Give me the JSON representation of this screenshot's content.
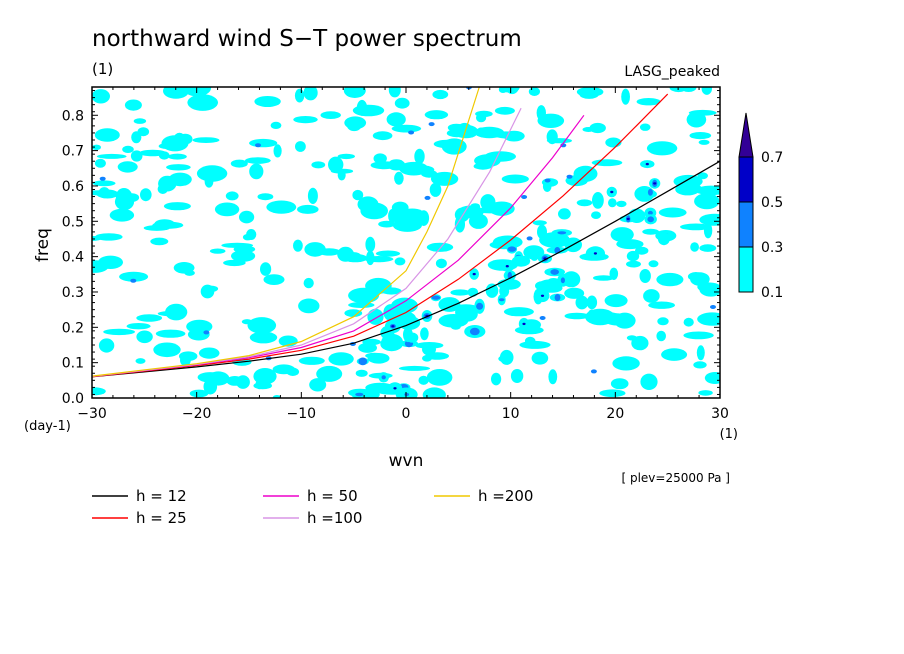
{
  "chart_data": {
    "type": "contour",
    "title": "northward wind S−T power spectrum",
    "subtitle_left": "(1)",
    "subtitle_right": "LASG_peaked",
    "xlabel": "wvn",
    "ylabel": "freq",
    "x_unit": "(1)",
    "y_unit": "(day-1)",
    "xlim": [
      -30,
      30
    ],
    "ylim": [
      0.0,
      0.88
    ],
    "x_ticks": [
      -30,
      -20,
      -10,
      0,
      10,
      20,
      30
    ],
    "x_tick_labels": [
      "−30",
      "−20",
      "−10",
      "0",
      "10",
      "20",
      "30"
    ],
    "y_ticks": [
      0.0,
      0.1,
      0.2,
      0.3,
      0.4,
      0.5,
      0.6,
      0.7,
      0.8
    ],
    "y_tick_labels": [
      "0.0",
      "0.1",
      "0.2",
      "0.3",
      "0.4",
      "0.5",
      "0.6",
      "0.7",
      "0.8"
    ],
    "note": "[ plev=25000 Pa ]",
    "colorbar": {
      "levels": [
        "0.1",
        "0.3",
        "0.5",
        "0.7"
      ],
      "colors": [
        "#00ffff",
        "#0f82ff",
        "#0000c8",
        "#320096"
      ]
    },
    "series": [
      {
        "name": "h = 12",
        "color": "#000000",
        "x": [
          -30,
          -20,
          -15,
          -10,
          -5,
          0,
          5,
          10,
          15,
          20,
          25,
          30
        ],
        "y": [
          0.06,
          0.088,
          0.104,
          0.124,
          0.155,
          0.205,
          0.268,
          0.34,
          0.418,
          0.5,
          0.585,
          0.67
        ]
      },
      {
        "name": "h = 25",
        "color": "#ff0000",
        "x": [
          -30,
          -20,
          -15,
          -10,
          -5,
          0,
          5,
          10,
          15,
          20,
          22,
          25
        ],
        "y": [
          0.06,
          0.092,
          0.11,
          0.135,
          0.175,
          0.242,
          0.336,
          0.447,
          0.572,
          0.71,
          0.77,
          0.86
        ]
      },
      {
        "name": "h = 50",
        "color": "#ee00cc",
        "x": [
          -30,
          -20,
          -15,
          -10,
          -5,
          0,
          5,
          10,
          14,
          17
        ],
        "y": [
          0.061,
          0.094,
          0.114,
          0.143,
          0.19,
          0.275,
          0.39,
          0.538,
          0.68,
          0.8
        ]
      },
      {
        "name": "h =100",
        "color": "#d895e6",
        "x": [
          -30,
          -20,
          -15,
          -10,
          -5,
          0,
          4,
          8,
          11
        ],
        "y": [
          0.061,
          0.095,
          0.117,
          0.15,
          0.21,
          0.31,
          0.45,
          0.64,
          0.82
        ]
      },
      {
        "name": "h =200",
        "color": "#f0c800",
        "x": [
          -30,
          -20,
          -15,
          -10,
          -5,
          0,
          2,
          4,
          7
        ],
        "y": [
          0.062,
          0.097,
          0.12,
          0.16,
          0.23,
          0.36,
          0.47,
          0.6,
          0.88
        ]
      }
    ]
  }
}
